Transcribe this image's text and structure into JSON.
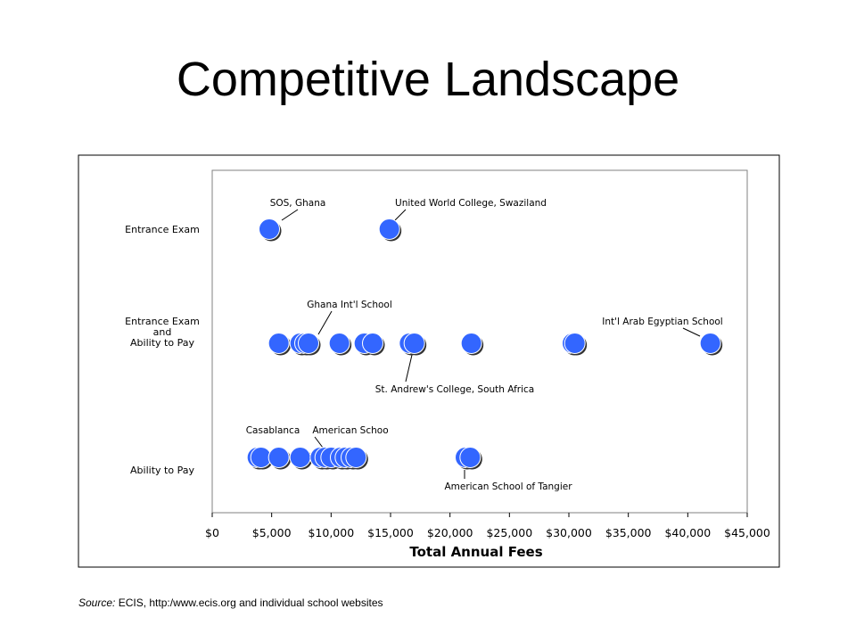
{
  "slide": {
    "title": "Competitive Landscape"
  },
  "source": {
    "label": "Source:",
    "text": "ECIS,  http:/www.ecis.org and individual school websites"
  },
  "chart_data": {
    "type": "scatter",
    "xlabel": "Total Annual Fees",
    "xlim": [
      0,
      45000
    ],
    "xticks": [
      0,
      5000,
      10000,
      15000,
      20000,
      25000,
      30000,
      35000,
      40000,
      45000
    ],
    "xtick_labels": [
      "$0",
      "$5,000",
      "$10,000",
      "$15,000",
      "$20,000",
      "$25,000",
      "$30,000",
      "$35,000",
      "$40,000",
      "$45,000"
    ],
    "grid": false,
    "point_color": "#3366FF",
    "categories": [
      {
        "key": "entrance_exam",
        "lines": [
          "Entrance Exam"
        ]
      },
      {
        "key": "exam_and_pay",
        "lines": [
          "Entrance Exam",
          "and",
          "Ability to Pay"
        ]
      },
      {
        "key": "ability_to_pay",
        "lines": [
          "Ability to Pay"
        ]
      }
    ],
    "series": [
      {
        "category": "entrance_exam",
        "x": [
          4800,
          14900
        ]
      },
      {
        "category": "exam_and_pay",
        "x": [
          5600,
          7400,
          7800,
          8100,
          10700,
          12800,
          13500,
          16600,
          17000,
          21800,
          30300,
          30500,
          41900
        ]
      },
      {
        "category": "ability_to_pay",
        "x": [
          3800,
          4100,
          5600,
          7400,
          9100,
          9500,
          10000,
          10800,
          11200,
          11700,
          12100,
          21300,
          21700
        ]
      }
    ],
    "annotations": [
      {
        "text": "SOS, Ghana",
        "category": "entrance_exam",
        "x": 4800
      },
      {
        "text": "United World College, Swaziland",
        "category": "entrance_exam",
        "x": 14900
      },
      {
        "text": "Ghana Int'l School",
        "category": "exam_and_pay",
        "x": 7700
      },
      {
        "text": "Int'l Arab Egyptian School",
        "category": "exam_and_pay",
        "x": 41900
      },
      {
        "text": "St. Andrew's College, South Africa",
        "category": "exam_and_pay",
        "x": 16800
      },
      {
        "text": "Casablanca",
        "category": "ability_to_pay",
        "x": 3800
      },
      {
        "text": "American Schoo",
        "category": "ability_to_pay",
        "x": 9200
      },
      {
        "text": "American School of Tangier",
        "category": "ability_to_pay",
        "x": 21500
      }
    ]
  }
}
